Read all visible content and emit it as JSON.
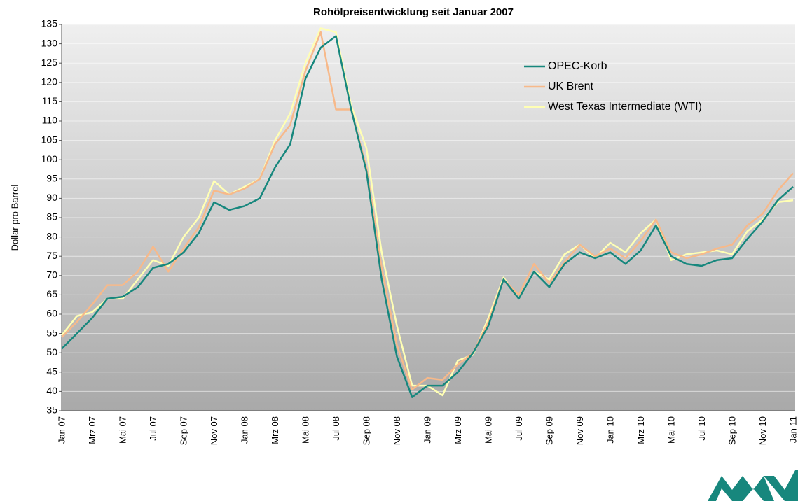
{
  "chart_data": {
    "type": "line",
    "title": "Rohölpreisentwicklung seit Januar 2007",
    "y_label": "Dollar pro Barrel",
    "categories": [
      "Jan 07",
      null,
      "Mrz 07",
      null,
      "Mai 07",
      null,
      "Jul 07",
      null,
      "Sep 07",
      null,
      "Nov 07",
      null,
      "Jan 08",
      null,
      "Mrz 08",
      null,
      "Mai 08",
      null,
      "Jul 08",
      null,
      "Sep 08",
      null,
      "Nov 08",
      null,
      "Jan 09",
      null,
      "Mrz 09",
      null,
      "Mai 09",
      null,
      "Jul 09",
      null,
      "Sep 09",
      null,
      "Nov 09",
      null,
      "Jan 10",
      null,
      "Mrz 10",
      null,
      "Mai 10",
      null,
      "Jul 10",
      null,
      "Sep 10",
      null,
      "Nov 10",
      null,
      "Jan 11"
    ],
    "series": [
      {
        "name": "OPEC-Korb",
        "color": "#17877d",
        "values": [
          51,
          55,
          59,
          64,
          64.5,
          67,
          72,
          73,
          76,
          81,
          89,
          87,
          88,
          90,
          98,
          104,
          121,
          129,
          132,
          113,
          97,
          69,
          49,
          38.5,
          41.5,
          41.5,
          45,
          50,
          57,
          69,
          64,
          71,
          67,
          73,
          76,
          74.5,
          76,
          73,
          76.5,
          83,
          75,
          73,
          72.5,
          74,
          74.5,
          79.5,
          84,
          89.5,
          93
        ]
      },
      {
        "name": "UK Brent",
        "color": "#f7b98a",
        "values": [
          54,
          58,
          62.5,
          67.5,
          67.5,
          71,
          77.5,
          71,
          77,
          82.5,
          92,
          91,
          92.5,
          95,
          104,
          109,
          123,
          133,
          113,
          113,
          98,
          72,
          52,
          40.5,
          43.5,
          43,
          47,
          50,
          58,
          69,
          65,
          73,
          68,
          73.5,
          78,
          75,
          77,
          74.5,
          79,
          84.5,
          76,
          74.5,
          75.5,
          77,
          78,
          83,
          86,
          92,
          96.5
        ]
      },
      {
        "name": "West Texas Intermediate (WTI)",
        "color": "#ffffb4",
        "values": [
          54.5,
          59.5,
          60.5,
          64,
          64,
          69,
          74,
          72.5,
          80,
          85,
          94.5,
          91,
          93,
          95,
          105,
          112,
          125,
          134,
          133,
          114,
          103,
          76,
          57,
          41.5,
          41.5,
          39,
          48,
          49.5,
          59,
          69.5,
          64,
          71,
          69,
          75.5,
          78,
          74.5,
          78.5,
          76,
          81,
          84.5,
          74,
          75.5,
          76,
          76.5,
          75.5,
          81.5,
          84.5,
          89,
          89.5
        ]
      }
    ],
    "ylim": [
      35,
      135
    ],
    "yticks": [
      35,
      40,
      45,
      50,
      55,
      60,
      65,
      70,
      75,
      80,
      85,
      90,
      95,
      100,
      105,
      110,
      115,
      120,
      125,
      130,
      135
    ],
    "grid": true
  }
}
